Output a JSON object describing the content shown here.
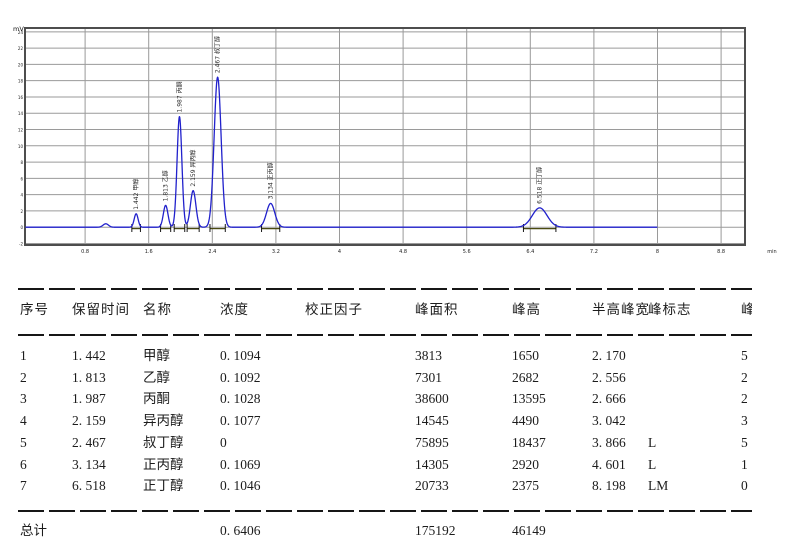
{
  "chart_data": {
    "type": "line",
    "title": "",
    "y_axis_unit": "mV",
    "x_axis_unit": "min",
    "xlim": [
      0,
      9.1
    ],
    "ylim": [
      -2.2,
      24.6
    ],
    "x_ticks": [
      0.8,
      1.6,
      2.4,
      3.2,
      4,
      4.8,
      5.6,
      6.4,
      7.2,
      8,
      8.8
    ],
    "y_tick_step": 2,
    "grid": "on",
    "baseline_mV": 0,
    "trace_start_min": 0.05,
    "trace_end_min": 8.0,
    "trace_color": "#2121cc",
    "peaks": [
      {
        "rt_min": 1.06,
        "height_uV": 420,
        "fwhm_s": 3.0,
        "label": ""
      },
      {
        "rt_min": 1.442,
        "height_uV": 1650,
        "fwhm_s": 2.17,
        "label": "1.442 甲醇"
      },
      {
        "rt_min": 1.813,
        "height_uV": 2682,
        "fwhm_s": 2.556,
        "label": "1.813 乙醇"
      },
      {
        "rt_min": 1.987,
        "height_uV": 13595,
        "fwhm_s": 2.666,
        "label": "1.987 丙酮"
      },
      {
        "rt_min": 2.159,
        "height_uV": 4490,
        "fwhm_s": 3.042,
        "label": "2.159 异丙醇"
      },
      {
        "rt_min": 2.467,
        "height_uV": 18437,
        "fwhm_s": 3.866,
        "label": "2.467 叔丁醇"
      },
      {
        "rt_min": 3.134,
        "height_uV": 2920,
        "fwhm_s": 4.601,
        "label": "3.134 正丙醇"
      },
      {
        "rt_min": 6.518,
        "height_uV": 2375,
        "fwhm_s": 8.198,
        "label": "6.518 正丁醇"
      }
    ]
  },
  "table": {
    "columns": [
      "序号",
      "保留时间",
      "名称",
      "浓度",
      "校正因子",
      "峰面积",
      "峰高",
      "半高峰宽",
      "峰标志",
      "峰宽"
    ],
    "rows": [
      [
        "1",
        "1. 442",
        "甲醇",
        "0. 1094",
        "",
        "3813",
        "1650",
        "2. 170",
        "",
        "5"
      ],
      [
        "2",
        "1. 813",
        "乙醇",
        "0. 1092",
        "",
        "7301",
        "2682",
        "2. 556",
        "",
        "2"
      ],
      [
        "3",
        "1. 987",
        "丙酮",
        "0. 1028",
        "",
        "38600",
        "13595",
        "2. 666",
        "",
        "2"
      ],
      [
        "4",
        "2. 159",
        "异丙醇",
        "0. 1077",
        "",
        "14545",
        "4490",
        "3. 042",
        "",
        "3"
      ],
      [
        "5",
        "2. 467",
        "叔丁醇",
        "0",
        "",
        "75895",
        "18437",
        "3. 866",
        "L",
        "5"
      ],
      [
        "6",
        "3. 134",
        "正丙醇",
        "0. 1069",
        "",
        "14305",
        "2920",
        "4. 601",
        "L",
        "1"
      ],
      [
        "7",
        "6. 518",
        "正丁醇",
        "0. 1046",
        "",
        "20733",
        "2375",
        "8. 198",
        "LM",
        "0"
      ]
    ],
    "total": {
      "label": "总计",
      "concentration": "0. 6406",
      "area": "175192",
      "height": "46149"
    }
  }
}
